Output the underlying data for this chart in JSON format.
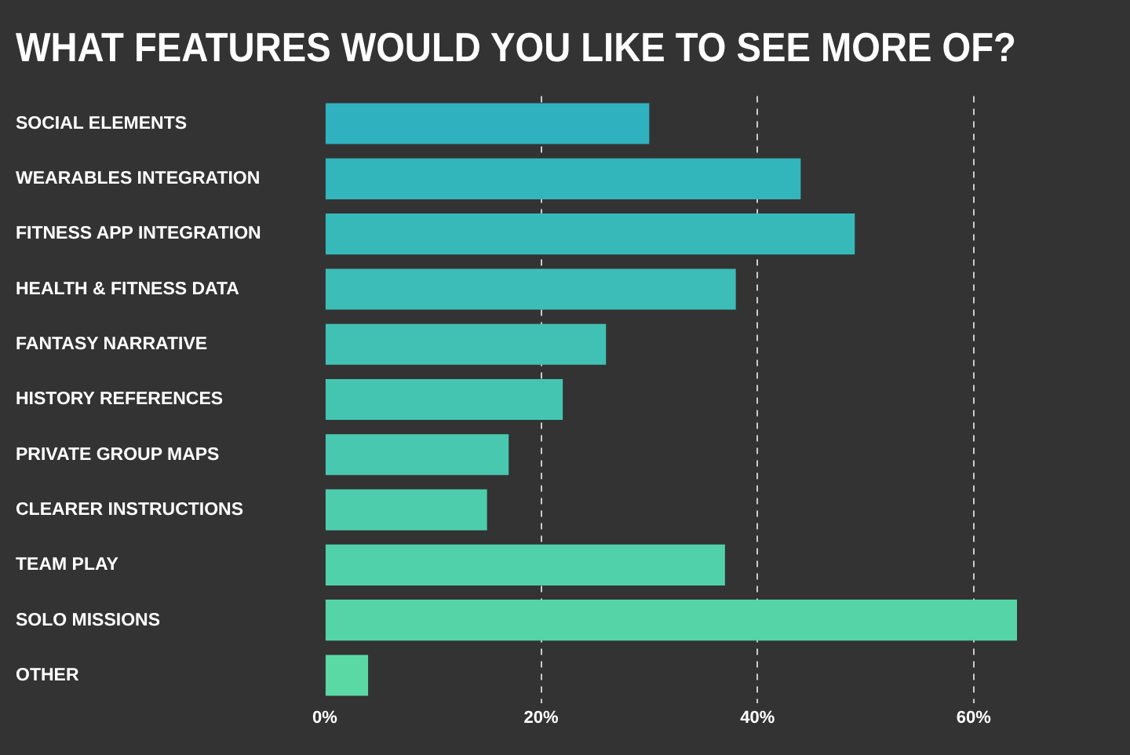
{
  "chart_data": {
    "type": "bar",
    "orientation": "horizontal",
    "title": "WHAT FEATURES WOULD YOU LIKE TO SEE MORE OF?",
    "categories": [
      "SOCIAL ELEMENTS",
      "WEARABLES INTEGRATION",
      "FITNESS APP INTEGRATION",
      "HEALTH & FITNESS DATA",
      "FANTASY NARRATIVE",
      "HISTORY REFERENCES",
      "PRIVATE GROUP MAPS",
      "CLEARER INSTRUCTIONS",
      "TEAM PLAY",
      "SOLO MISSIONS",
      "OTHER"
    ],
    "values": [
      30,
      44,
      49,
      38,
      26,
      22,
      17,
      15,
      37,
      64,
      4
    ],
    "colors": [
      "#2fb1bf",
      "#33b5bc",
      "#37b9ba",
      "#3cbdb7",
      "#40c1b4",
      "#44c5b2",
      "#48c9af",
      "#4dcdac",
      "#51d1aa",
      "#55d5a7",
      "#5ad9a4"
    ],
    "xlim": [
      0,
      64
    ],
    "xticks": [
      {
        "value": 0,
        "label": "0%"
      },
      {
        "value": 20,
        "label": "20%"
      },
      {
        "value": 40,
        "label": "40%"
      },
      {
        "value": 60,
        "label": "60%"
      }
    ],
    "grid": "x",
    "legend": false
  }
}
